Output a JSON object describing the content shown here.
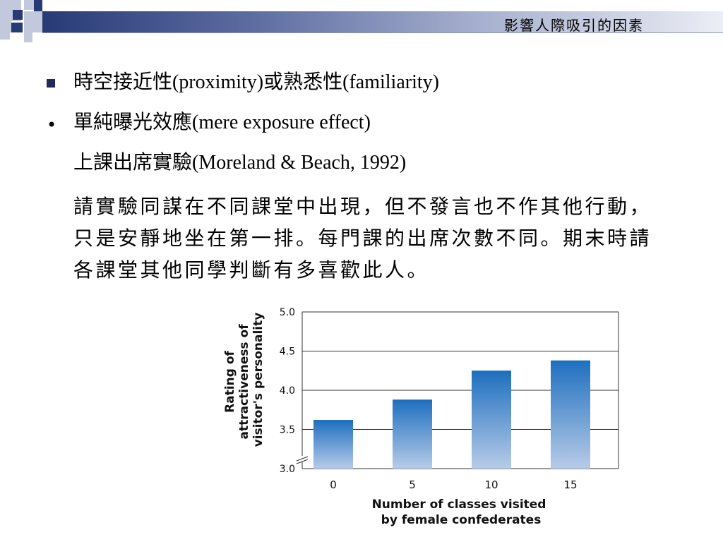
{
  "header": {
    "title": "影響人際吸引的因素"
  },
  "bullets": [
    {
      "main": "時空接近性",
      "latin": "(proximity)",
      "main2": "或熟悉性",
      "latin2": "(familiarity)"
    },
    {
      "main": "單純曝光效應",
      "latin": "(mere exposure effect)"
    }
  ],
  "subline": {
    "main": "上課出席實驗",
    "latin": "(Moreland & Beach, 1992)"
  },
  "paragraph": "請實驗同謀在不同課堂中出現，但不發言也不作其他行動，只是安靜地坐在第一排。每門課的出席次數不同。期末時請各課堂其他同學判斷有多喜歡此人。",
  "colors": {
    "navy": "#283a76",
    "bar_top": "#1e6fbf",
    "bar_bottom": "#b7cbe8"
  },
  "chart_data": {
    "type": "bar",
    "categories": [
      "0",
      "5",
      "10",
      "15"
    ],
    "values": [
      3.62,
      3.88,
      4.25,
      4.38
    ],
    "ylim": [
      3.0,
      5.0
    ],
    "yticks": [
      "3.0",
      "3.5",
      "4.0",
      "4.5",
      "5.0"
    ],
    "xlabel_lines": [
      "Number of classes visited",
      "by female confederates"
    ],
    "ylabel_lines": [
      "Rating of",
      "attractiveness of",
      "visitor's personality"
    ],
    "grid": true,
    "axis_break": true
  }
}
